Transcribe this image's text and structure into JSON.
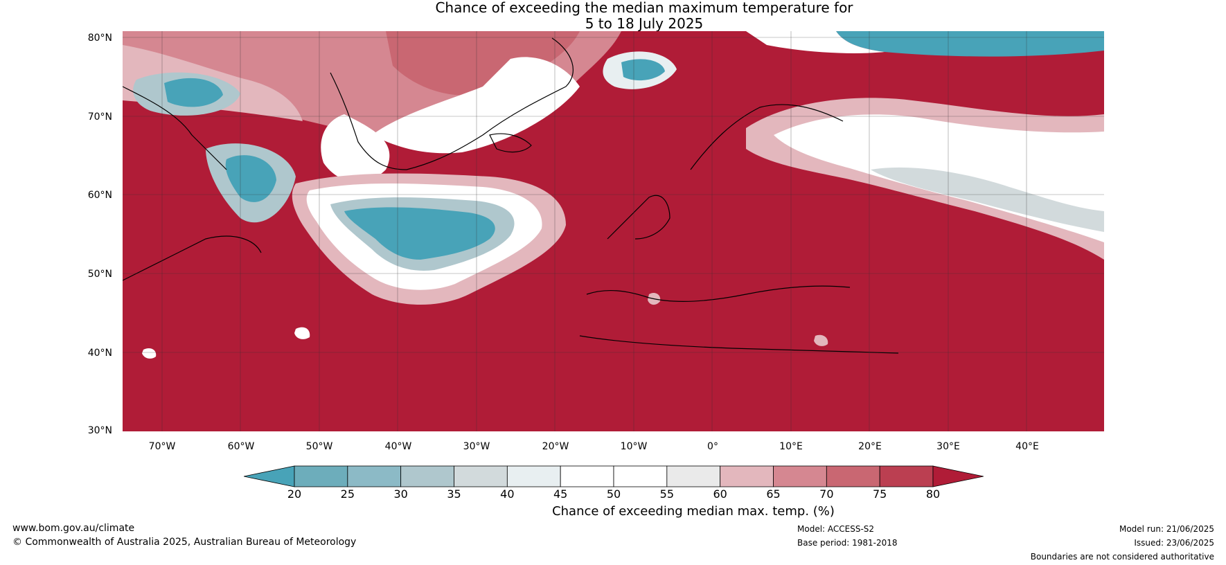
{
  "title": {
    "line1": "Chance of exceeding the median maximum temperature for",
    "line2": "5 to 18 July 2025"
  },
  "axes": {
    "lat_labels": [
      "80°N",
      "70°N",
      "60°N",
      "50°N",
      "40°N",
      "30°N"
    ],
    "lon_labels": [
      "70°W",
      "60°W",
      "50°W",
      "40°W",
      "30°W",
      "20°W",
      "10°W",
      "0°",
      "10°E",
      "20°E",
      "30°E",
      "40°E"
    ]
  },
  "colorbar": {
    "ticks": [
      "20",
      "25",
      "30",
      "35",
      "40",
      "45",
      "50",
      "55",
      "60",
      "65",
      "70",
      "75",
      "80"
    ],
    "colors": [
      "#48a3b8",
      "#6dadbb",
      "#8cbac6",
      "#afc7cd",
      "#d2dadc",
      "#e8eff1",
      "#ffffff",
      "#ffffff",
      "#eaeaea",
      "#e3b7bd",
      "#d58791",
      "#c96772",
      "#bb3f51",
      "#b01c37"
    ],
    "label": "Chance of exceeding median max. temp. (%)"
  },
  "footer": {
    "website": "www.bom.gov.au/climate",
    "copyright": "© Commonwealth of Australia 2025, Australian Bureau of Meteorology",
    "model": "Model: ACCESS-S2",
    "base_period": "Base period: 1981-2018",
    "model_run": "Model run: 21/06/2025",
    "issued": "Issued: 23/06/2025",
    "boundaries": "Boundaries are not considered authoritative"
  }
}
